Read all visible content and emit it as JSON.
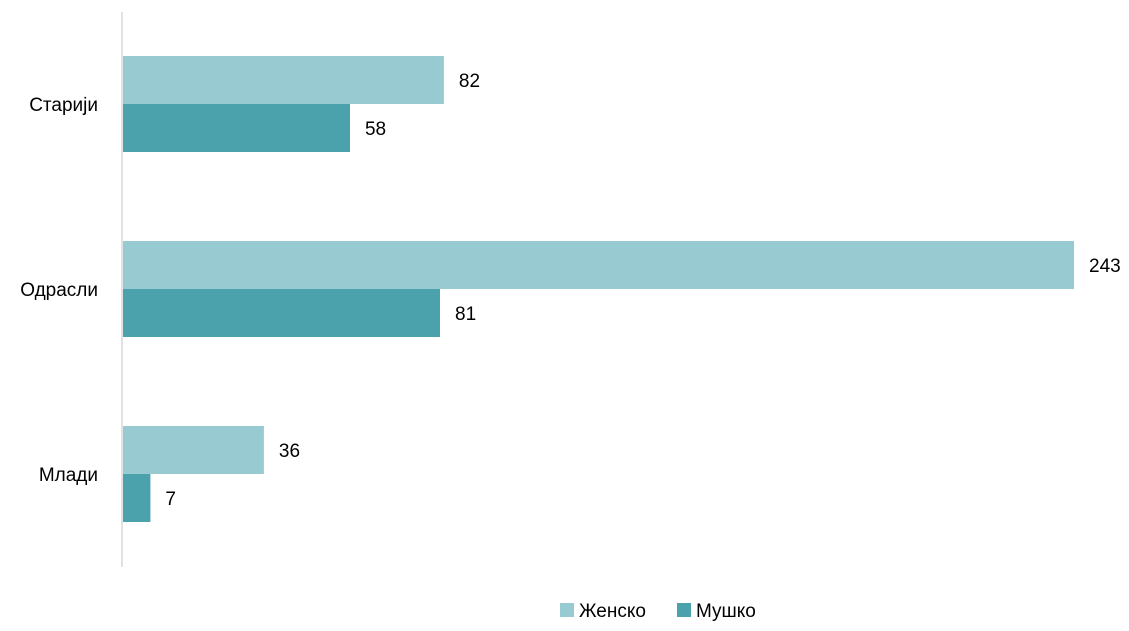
{
  "chart_data": {
    "type": "bar",
    "orientation": "horizontal",
    "categories": [
      "Старији",
      "Одрасли",
      "Млади"
    ],
    "series": [
      {
        "name": "Женско",
        "values": [
          82,
          243,
          36
        ],
        "color": "#97CBD1"
      },
      {
        "name": "Мушко",
        "values": [
          58,
          81,
          7
        ],
        "color": "#4CA2AC"
      }
    ],
    "title": "",
    "xlabel": "",
    "ylabel": "",
    "xlim": [
      0,
      243
    ],
    "grid": false,
    "data_labels": true,
    "legend_position": "bottom"
  },
  "colors": {
    "axis": "#D9D9D9",
    "text": "#000000"
  }
}
